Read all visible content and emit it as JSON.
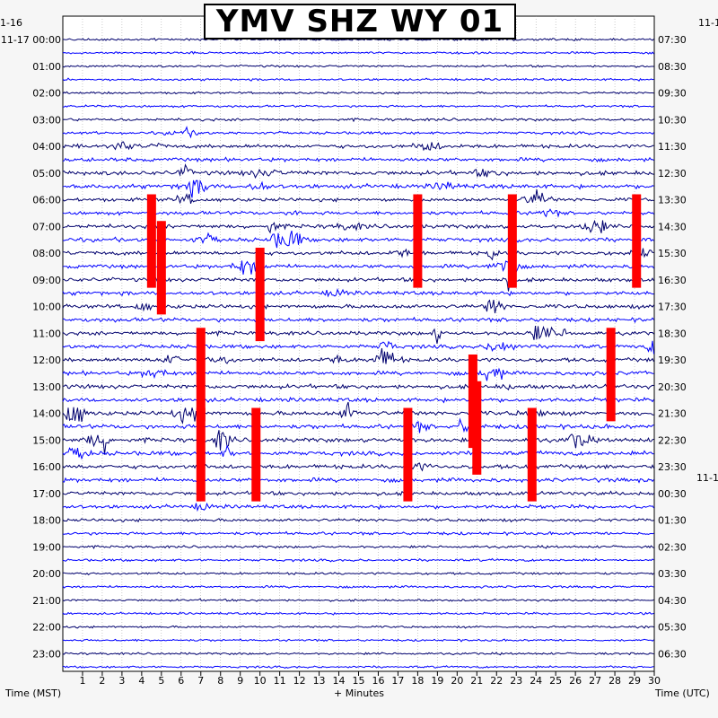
{
  "title": "YMV SHZ WY 01",
  "left_axis": {
    "label": "Time (MST)",
    "date_prev": "1-16",
    "date_main": "11-17",
    "hours": [
      "00:00",
      "01:00",
      "02:00",
      "03:00",
      "04:00",
      "05:00",
      "06:00",
      "07:00",
      "08:00",
      "09:00",
      "10:00",
      "11:00",
      "12:00",
      "13:00",
      "14:00",
      "15:00",
      "16:00",
      "17:00",
      "18:00",
      "19:00",
      "20:00",
      "21:00",
      "22:00",
      "23:00"
    ]
  },
  "right_axis": {
    "label": "Time (UTC)",
    "date_top": "11-1",
    "date_mid": "11-1",
    "hours": [
      "07:30",
      "08:30",
      "09:30",
      "10:30",
      "11:30",
      "12:30",
      "13:30",
      "14:30",
      "15:30",
      "16:30",
      "17:30",
      "18:30",
      "19:30",
      "20:30",
      "21:30",
      "22:30",
      "23:30",
      "00:30",
      "01:30",
      "02:30",
      "03:30",
      "04:30",
      "05:30",
      "06:30"
    ]
  },
  "x_axis": {
    "label": "+ Minutes",
    "ticks": [
      "1",
      "2",
      "3",
      "4",
      "5",
      "6",
      "7",
      "8",
      "9",
      "10",
      "11",
      "12",
      "13",
      "14",
      "15",
      "16",
      "17",
      "18",
      "19",
      "20",
      "21",
      "22",
      "23",
      "24",
      "25",
      "26",
      "27",
      "28",
      "29",
      "30"
    ],
    "range": [
      0,
      30
    ]
  },
  "chart_data": {
    "type": "helicorder",
    "station": "YMV SHZ WY 01",
    "traces_per_hour": 2,
    "minutes_per_trace": 30,
    "trace_colors": [
      "#00006e",
      "#0000ff"
    ],
    "clip_color": "#ff0000",
    "grid": true,
    "clipped_events": [
      {
        "hour": 6,
        "minute": 4.5
      },
      {
        "hour": 7,
        "minute": 5.0
      },
      {
        "hour": 6,
        "minute": 18.0
      },
      {
        "hour": 8,
        "minute": 10.0
      },
      {
        "hour": 6,
        "minute": 22.8
      },
      {
        "hour": 6,
        "minute": 29.1
      },
      {
        "hour": 11,
        "minute": 7.0
      },
      {
        "hour": 11,
        "minute": 27.8
      },
      {
        "hour": 13,
        "minute": 21.0
      },
      {
        "hour": 14,
        "minute": 7.0
      },
      {
        "hour": 14,
        "minute": 9.8
      },
      {
        "hour": 14,
        "minute": 17.5
      },
      {
        "hour": 14,
        "minute": 23.8
      },
      {
        "hour": 12,
        "minute": 20.8
      }
    ]
  }
}
